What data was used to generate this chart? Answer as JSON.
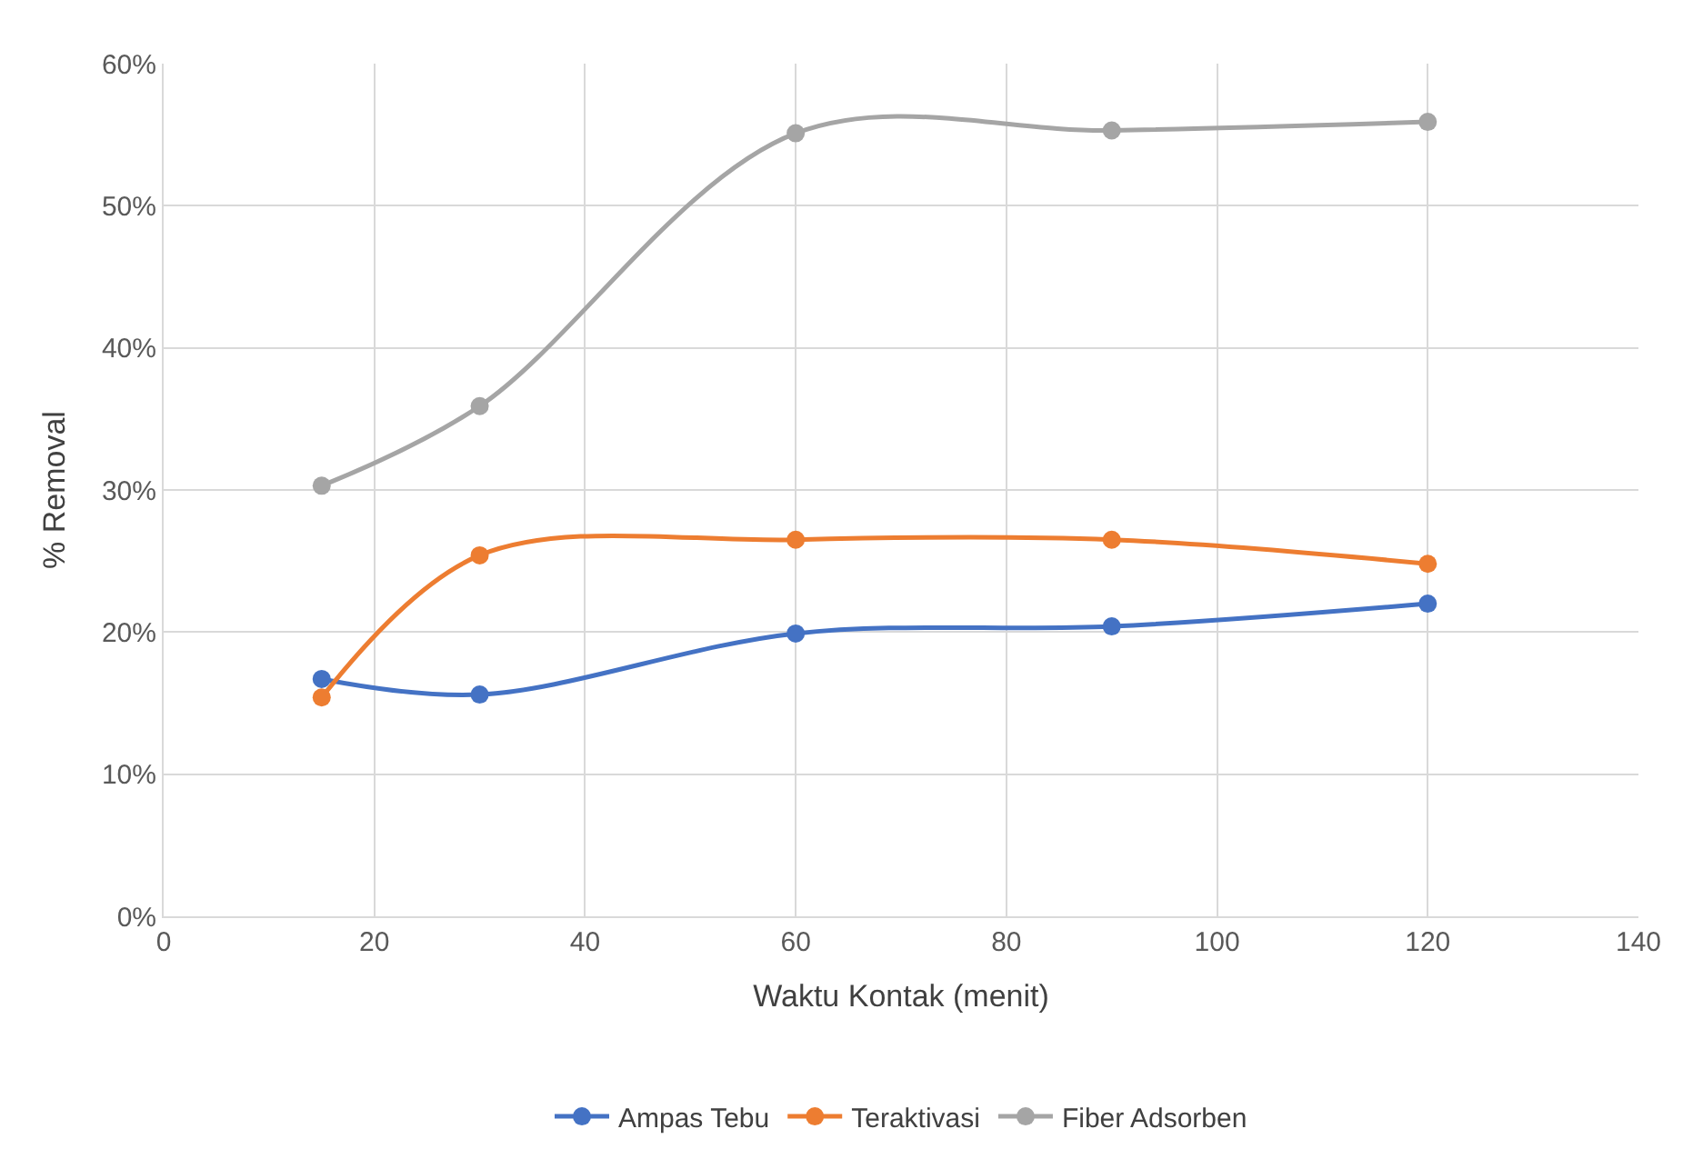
{
  "chart_data": {
    "type": "line",
    "xlabel": "Waktu Kontak (menit)",
    "ylabel": "% Removal",
    "x": [
      15,
      30,
      60,
      90,
      120
    ],
    "series": [
      {
        "name": "Ampas Tebu",
        "color": "#4472c4",
        "values": [
          16.7,
          15.6,
          19.9,
          20.4,
          22.0
        ]
      },
      {
        "name": "Teraktivasi",
        "color": "#ed7d31",
        "values": [
          15.4,
          25.4,
          26.5,
          26.5,
          24.8
        ]
      },
      {
        "name": "Fiber Adsorben",
        "color": "#a5a5a5",
        "values": [
          30.3,
          35.9,
          55.1,
          55.3,
          55.9
        ]
      }
    ],
    "xlim": [
      0,
      140
    ],
    "xticks": [
      0,
      20,
      40,
      60,
      80,
      100,
      120,
      140
    ],
    "ylim": [
      0,
      60
    ],
    "yticks": [
      {
        "value": 0,
        "label": "0%"
      },
      {
        "value": 10,
        "label": "10%"
      },
      {
        "value": 20,
        "label": "20%"
      },
      {
        "value": 30,
        "label": "30%"
      },
      {
        "value": 40,
        "label": "40%"
      },
      {
        "value": 50,
        "label": "50%"
      },
      {
        "value": 60,
        "label": "60%"
      }
    ],
    "grid": true,
    "legend": "bottom",
    "marker": "circle",
    "line_style": "solid"
  }
}
